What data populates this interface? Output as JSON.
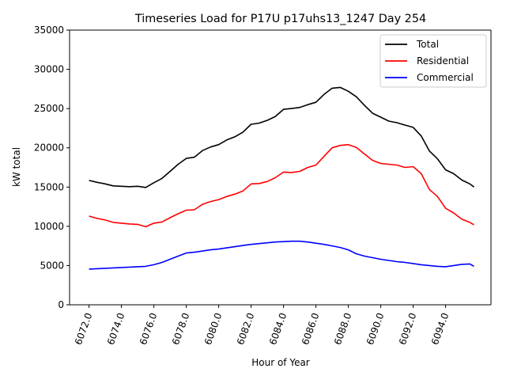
{
  "chart_data": {
    "type": "line",
    "title": "Timeseries Load for P17U p17uhs13_1247  Day 254",
    "xlabel": "Hour of Year",
    "ylabel": "kW total",
    "xlim": [
      6070.8,
      6096.8
    ],
    "ylim": [
      0,
      35000
    ],
    "xticks": [
      6072,
      6074,
      6076,
      6078,
      6080,
      6082,
      6084,
      6086,
      6088,
      6090,
      6092,
      6094
    ],
    "xtick_labels": [
      "6072.0",
      "6074.0",
      "6076.0",
      "6078.0",
      "6080.0",
      "6082.0",
      "6084.0",
      "6086.0",
      "6088.0",
      "6090.0",
      "6092.0",
      "6094.0"
    ],
    "yticks": [
      0,
      5000,
      10000,
      15000,
      20000,
      25000,
      30000,
      35000
    ],
    "ytick_labels": [
      "0",
      "5000",
      "10000",
      "15000",
      "20000",
      "25000",
      "30000",
      "35000"
    ],
    "grid": false,
    "legend_position": "top-right",
    "x": [
      6072.0,
      6072.5,
      6073.0,
      6073.5,
      6074.0,
      6074.5,
      6075.0,
      6075.5,
      6076.0,
      6076.5,
      6077.0,
      6077.5,
      6078.0,
      6078.5,
      6079.0,
      6079.5,
      6080.0,
      6080.5,
      6081.0,
      6081.5,
      6082.0,
      6082.5,
      6083.0,
      6083.5,
      6084.0,
      6084.5,
      6085.0,
      6085.5,
      6086.0,
      6086.5,
      6087.0,
      6087.5,
      6088.0,
      6088.5,
      6089.0,
      6089.5,
      6090.0,
      6090.5,
      6091.0,
      6091.5,
      6092.0,
      6092.5,
      6093.0,
      6093.5,
      6094.0,
      6094.5,
      6095.0,
      6095.5,
      6095.75
    ],
    "series": [
      {
        "name": "Total",
        "color": "#000000",
        "values": [
          15850,
          15600,
          15400,
          15150,
          15100,
          15050,
          15100,
          14950,
          15550,
          16100,
          17000,
          17900,
          18650,
          18800,
          19650,
          20100,
          20400,
          21000,
          21400,
          22000,
          23000,
          23150,
          23500,
          24000,
          24900,
          25000,
          25150,
          25500,
          25800,
          26800,
          27600,
          27700,
          27200,
          26500,
          25400,
          24400,
          23900,
          23400,
          23200,
          22900,
          22600,
          21500,
          19600,
          18600,
          17200,
          16700,
          15900,
          15400,
          15000
        ]
      },
      {
        "name": "Residential",
        "color": "#ff0000",
        "values": [
          11300,
          11000,
          10800,
          10500,
          10400,
          10300,
          10250,
          9950,
          10400,
          10550,
          11100,
          11600,
          12050,
          12100,
          12800,
          13150,
          13400,
          13800,
          14100,
          14500,
          15400,
          15450,
          15700,
          16200,
          16900,
          16850,
          17000,
          17500,
          17800,
          18900,
          20000,
          20300,
          20400,
          20050,
          19200,
          18400,
          18000,
          17900,
          17800,
          17500,
          17600,
          16700,
          14700,
          13800,
          12300,
          11700,
          10900,
          10500,
          10200
        ]
      },
      {
        "name": "Commercial",
        "color": "#0000ff",
        "values": [
          4550,
          4600,
          4650,
          4700,
          4750,
          4800,
          4850,
          4900,
          5100,
          5400,
          5800,
          6200,
          6600,
          6700,
          6850,
          7000,
          7100,
          7250,
          7400,
          7550,
          7700,
          7800,
          7900,
          8000,
          8050,
          8100,
          8100,
          8000,
          7850,
          7700,
          7500,
          7300,
          7000,
          6500,
          6200,
          6000,
          5800,
          5650,
          5500,
          5400,
          5250,
          5100,
          5000,
          4900,
          4850,
          5000,
          5150,
          5200,
          4900
        ]
      }
    ]
  }
}
